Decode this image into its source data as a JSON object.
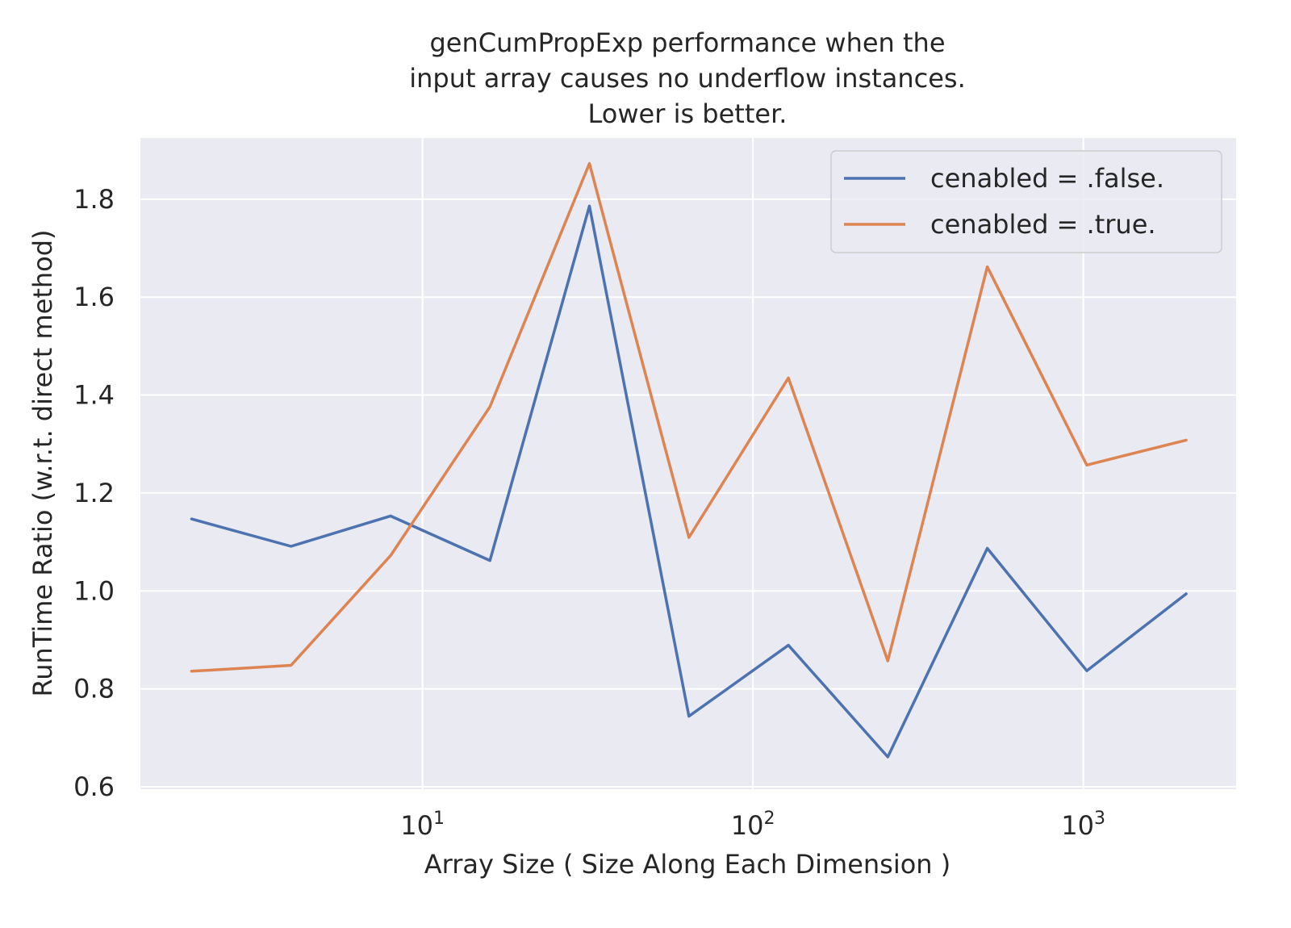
{
  "chart_data": {
    "type": "line",
    "title_lines": [
      "genCumPropExp performance when the",
      "input array causes no underflow instances.",
      "Lower is better."
    ],
    "xlabel": "Array Size ( Size Along Each Dimension )",
    "ylabel": "RunTime Ratio (w.r.t. direct method)",
    "x_scale": "log",
    "x_tick_labels": [
      {
        "value": 10,
        "base": "10",
        "exp": "1"
      },
      {
        "value": 100,
        "base": "10",
        "exp": "2"
      },
      {
        "value": 1000,
        "base": "10",
        "exp": "3"
      }
    ],
    "y_ticks": [
      0.6,
      0.8,
      1.0,
      1.2,
      1.4,
      1.6,
      1.8
    ],
    "y_tick_labels": [
      "0.6",
      "0.8",
      "1.0",
      "1.2",
      "1.4",
      "1.6",
      "1.8"
    ],
    "xlim": [
      1.4,
      2900
    ],
    "ylim": [
      0.595,
      1.925
    ],
    "grid": true,
    "background": "#eaeaf2",
    "legend_position": "top-right",
    "x": [
      2,
      4,
      8,
      16,
      32,
      64,
      128,
      256,
      512,
      1024,
      2048
    ],
    "series": [
      {
        "name": "cenabled = .false.",
        "color": "#4c72b0",
        "values": [
          1.147,
          1.091,
          1.153,
          1.062,
          1.786,
          0.744,
          0.889,
          0.661,
          1.087,
          0.837,
          0.994
        ]
      },
      {
        "name": "cenabled = .true.",
        "color": "#dd8452",
        "values": [
          0.836,
          0.848,
          1.072,
          1.376,
          1.873,
          1.109,
          1.435,
          0.857,
          1.662,
          1.257,
          1.308
        ]
      }
    ]
  }
}
